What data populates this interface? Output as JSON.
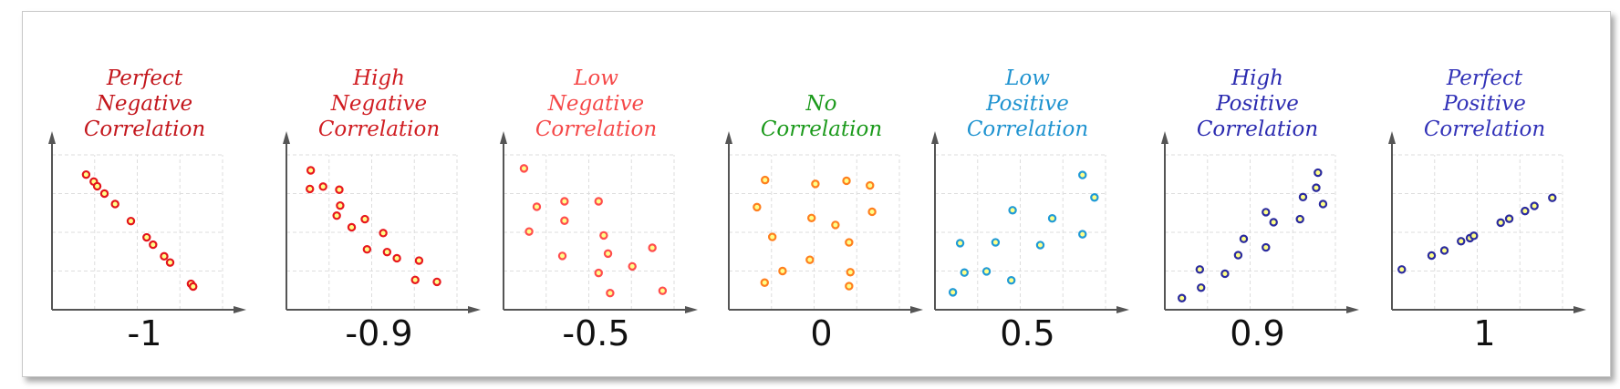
{
  "chart_data": [
    {
      "type": "scatter",
      "title_lines": [
        "Perfect",
        "Negative",
        "Correlation"
      ],
      "r_label": "-1",
      "title_color": "#c3161c",
      "marker_color": "#e3141c",
      "xlim": [
        0,
        4
      ],
      "ylim": [
        0,
        4
      ],
      "grid": true,
      "points": [
        [
          0.8,
          3.49
        ],
        [
          0.98,
          3.31
        ],
        [
          1.06,
          3.19
        ],
        [
          1.23,
          3.0
        ],
        [
          1.48,
          2.73
        ],
        [
          1.85,
          2.29
        ],
        [
          2.22,
          1.87
        ],
        [
          2.37,
          1.68
        ],
        [
          2.63,
          1.38
        ],
        [
          2.77,
          1.22
        ],
        [
          3.26,
          0.67
        ],
        [
          3.31,
          0.6
        ]
      ]
    },
    {
      "type": "scatter",
      "title_lines": [
        "High",
        "Negative",
        "Correlation"
      ],
      "r_label": "-0.9",
      "title_color": "#d01d22",
      "marker_color": "#e8181e",
      "xlim": [
        0,
        4
      ],
      "ylim": [
        0,
        4
      ],
      "grid": true,
      "points": [
        [
          0.57,
          3.6
        ],
        [
          0.55,
          3.12
        ],
        [
          0.86,
          3.18
        ],
        [
          1.24,
          3.1
        ],
        [
          1.26,
          2.69
        ],
        [
          1.18,
          2.43
        ],
        [
          1.84,
          2.34
        ],
        [
          1.53,
          2.13
        ],
        [
          2.27,
          1.98
        ],
        [
          1.89,
          1.56
        ],
        [
          2.36,
          1.49
        ],
        [
          2.59,
          1.33
        ],
        [
          3.11,
          1.27
        ],
        [
          3.02,
          0.77
        ],
        [
          3.53,
          0.72
        ]
      ]
    },
    {
      "type": "scatter",
      "title_lines": [
        "Low",
        "Negative",
        "Correlation"
      ],
      "r_label": "-0.5",
      "title_color": "#f54848",
      "marker_color": "#ff4d4d",
      "xlim": [
        0,
        4
      ],
      "ylim": [
        0,
        4
      ],
      "grid": true,
      "points": [
        [
          0.48,
          3.65
        ],
        [
          0.78,
          2.66
        ],
        [
          0.6,
          2.02
        ],
        [
          1.43,
          2.8
        ],
        [
          1.43,
          2.3
        ],
        [
          1.38,
          1.39
        ],
        [
          2.23,
          2.8
        ],
        [
          2.35,
          1.92
        ],
        [
          2.45,
          1.45
        ],
        [
          2.23,
          0.95
        ],
        [
          2.5,
          0.43
        ],
        [
          3.02,
          1.12
        ],
        [
          3.49,
          1.6
        ],
        [
          3.73,
          0.49
        ]
      ]
    },
    {
      "type": "scatter",
      "title_lines": [
        "No",
        "Correlation"
      ],
      "r_label": "0",
      "title_color": "#1c9a1c",
      "marker_color": "#ff7f1e",
      "xlim": [
        0,
        4
      ],
      "ylim": [
        0,
        4
      ],
      "grid": true,
      "points": [
        [
          0.85,
          3.35
        ],
        [
          0.66,
          2.65
        ],
        [
          1.02,
          1.88
        ],
        [
          1.26,
          1.0
        ],
        [
          0.84,
          0.7
        ],
        [
          2.03,
          3.25
        ],
        [
          1.94,
          2.37
        ],
        [
          1.9,
          1.29
        ],
        [
          2.5,
          2.19
        ],
        [
          2.76,
          3.33
        ],
        [
          2.82,
          1.74
        ],
        [
          2.85,
          0.97
        ],
        [
          2.82,
          0.61
        ],
        [
          3.31,
          3.21
        ],
        [
          3.36,
          2.53
        ]
      ]
    },
    {
      "type": "scatter",
      "title_lines": [
        "Low",
        "Positive",
        "Correlation"
      ],
      "r_label": "0.5",
      "title_color": "#1f93d0",
      "marker_color": "#1f9ad6",
      "xlim": [
        0,
        4
      ],
      "ylim": [
        0,
        4
      ],
      "grid": true,
      "points": [
        [
          0.42,
          0.45
        ],
        [
          0.59,
          1.72
        ],
        [
          0.69,
          0.96
        ],
        [
          1.21,
          0.99
        ],
        [
          1.42,
          1.74
        ],
        [
          1.82,
          2.57
        ],
        [
          1.79,
          0.76
        ],
        [
          2.47,
          1.67
        ],
        [
          2.75,
          2.36
        ],
        [
          3.46,
          3.48
        ],
        [
          3.74,
          2.9
        ],
        [
          3.46,
          1.95
        ]
      ]
    },
    {
      "type": "scatter",
      "title_lines": [
        "High",
        "Positive",
        "Correlation"
      ],
      "r_label": "0.9",
      "title_color": "#2b2bb0",
      "marker_color": "#2a2a9e",
      "xlim": [
        0,
        4
      ],
      "ylim": [
        0,
        4
      ],
      "grid": true,
      "points": [
        [
          0.4,
          0.3
        ],
        [
          0.82,
          1.04
        ],
        [
          0.85,
          0.57
        ],
        [
          1.41,
          0.93
        ],
        [
          1.72,
          1.41
        ],
        [
          1.85,
          1.83
        ],
        [
          2.37,
          2.52
        ],
        [
          2.37,
          1.61
        ],
        [
          2.55,
          2.26
        ],
        [
          3.17,
          2.34
        ],
        [
          3.24,
          2.91
        ],
        [
          3.55,
          3.15
        ],
        [
          3.59,
          3.54
        ],
        [
          3.71,
          2.73
        ]
      ]
    },
    {
      "type": "scatter",
      "title_lines": [
        "Perfect",
        "Positive",
        "Correlation"
      ],
      "r_label": "1",
      "title_color": "#3232b8",
      "marker_color": "#2a2a9e",
      "xlim": [
        0,
        4
      ],
      "ylim": [
        0,
        4
      ],
      "grid": true,
      "points": [
        [
          0.23,
          1.04
        ],
        [
          0.93,
          1.4
        ],
        [
          1.23,
          1.53
        ],
        [
          1.62,
          1.77
        ],
        [
          1.83,
          1.85
        ],
        [
          1.92,
          1.91
        ],
        [
          2.55,
          2.25
        ],
        [
          2.75,
          2.35
        ],
        [
          3.12,
          2.55
        ],
        [
          3.34,
          2.68
        ],
        [
          3.76,
          2.89
        ]
      ]
    }
  ],
  "colors": {
    "axis": "#555555",
    "grid": "#dddddd",
    "marker_center": "#ffff88"
  }
}
